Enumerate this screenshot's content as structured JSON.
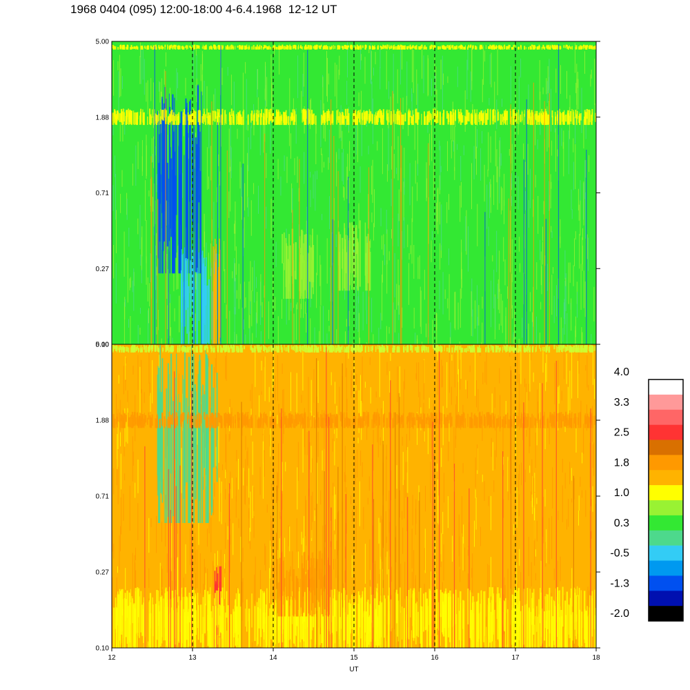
{
  "title": "1968 0404 (095) 12:00-18:00 4-6.4.1968  12-12 UT",
  "chart_data": [
    {
      "type": "heatmap",
      "panel": "top",
      "x_range": [
        12,
        18
      ],
      "y_scale": "log",
      "y_range": [
        0.1,
        5.0
      ],
      "y_tick_labels": [
        "5.00",
        "1.88",
        "0.71",
        "0.27",
        "0.10"
      ],
      "grid": "vertical dashed lines at x = 13, 14, 15, 16, 17",
      "background_color": "#33e833",
      "features": [
        {
          "x": [
            12.55,
            13.1
          ],
          "y": [
            0.25,
            3.0
          ],
          "level": -1.3,
          "color": "#0050f0"
        },
        {
          "x": [
            12.85,
            13.3
          ],
          "y": [
            0.1,
            0.35
          ],
          "level": -0.5,
          "color": "#33ccf5"
        },
        {
          "x": [
            13.25,
            13.35
          ],
          "y": [
            0.1,
            0.4
          ],
          "level": 1.8,
          "color": "#ffb300"
        },
        {
          "x": [
            12.0,
            18.0
          ],
          "y": [
            1.7,
            2.1
          ],
          "level": 1.0,
          "color": "#ffff00"
        },
        {
          "x": [
            12.0,
            18.0
          ],
          "y": [
            4.5,
            4.8
          ],
          "level": 1.0,
          "color": "#ffff00"
        },
        {
          "x": [
            14.1,
            14.5
          ],
          "y": [
            0.18,
            0.45
          ],
          "level": 0.6,
          "color": "#99f233"
        },
        {
          "x": [
            14.8,
            15.2
          ],
          "y": [
            0.2,
            0.5
          ],
          "level": 0.6,
          "color": "#99f233"
        }
      ]
    },
    {
      "type": "heatmap",
      "panel": "bottom",
      "x_range": [
        12,
        18
      ],
      "y_scale": "log",
      "y_range": [
        0.1,
        5.0
      ],
      "y_tick_labels": [
        "5.00",
        "1.88",
        "0.71",
        "0.27",
        "0.10"
      ],
      "x_ticks": [
        12,
        13,
        14,
        15,
        16,
        17,
        18
      ],
      "x_tick_labels": [
        "12",
        "13",
        "14",
        "15",
        "16",
        "17",
        "18"
      ],
      "xlabel": "UT",
      "grid": "vertical dashed lines at x = 13, 14, 15, 16, 17",
      "background_color": "#ffb300",
      "features": [
        {
          "x": [
            12.55,
            13.3
          ],
          "y": [
            0.5,
            5.0
          ],
          "level": 0.1,
          "color": "#4dd98c"
        },
        {
          "x": [
            13.25,
            13.35
          ],
          "y": [
            0.1,
            0.3
          ],
          "level": 2.5,
          "color": "#ff3333"
        },
        {
          "x": [
            12.0,
            18.0
          ],
          "y": [
            0.1,
            0.22
          ],
          "level": 1.0,
          "color": "#ffff00"
        },
        {
          "x": [
            12.0,
            18.0
          ],
          "y": [
            1.7,
            2.1
          ],
          "level": 2.0,
          "color": "#ff9900"
        },
        {
          "x": [
            12.0,
            18.0
          ],
          "y": [
            4.5,
            5.0
          ],
          "level": 0.8,
          "color": "#ccff33"
        },
        {
          "x": [
            14.0,
            14.7
          ],
          "y": [
            0.15,
            0.35
          ],
          "level": 2.0,
          "color": "#ff9900"
        }
      ]
    }
  ],
  "colorbar": {
    "tick_labels": [
      "4.0",
      "3.3",
      "2.5",
      "1.8",
      "1.0",
      "0.3",
      "-0.5",
      "-1.3",
      "-2.0"
    ],
    "colors": [
      "#ffffff",
      "#ff9999",
      "#ff6666",
      "#ff3333",
      "#d97000",
      "#ff9900",
      "#ffb300",
      "#ffff00",
      "#99f233",
      "#33e833",
      "#4dd98c",
      "#33ccf5",
      "#0099f0",
      "#0050f0",
      "#0010b0",
      "#000000"
    ]
  }
}
